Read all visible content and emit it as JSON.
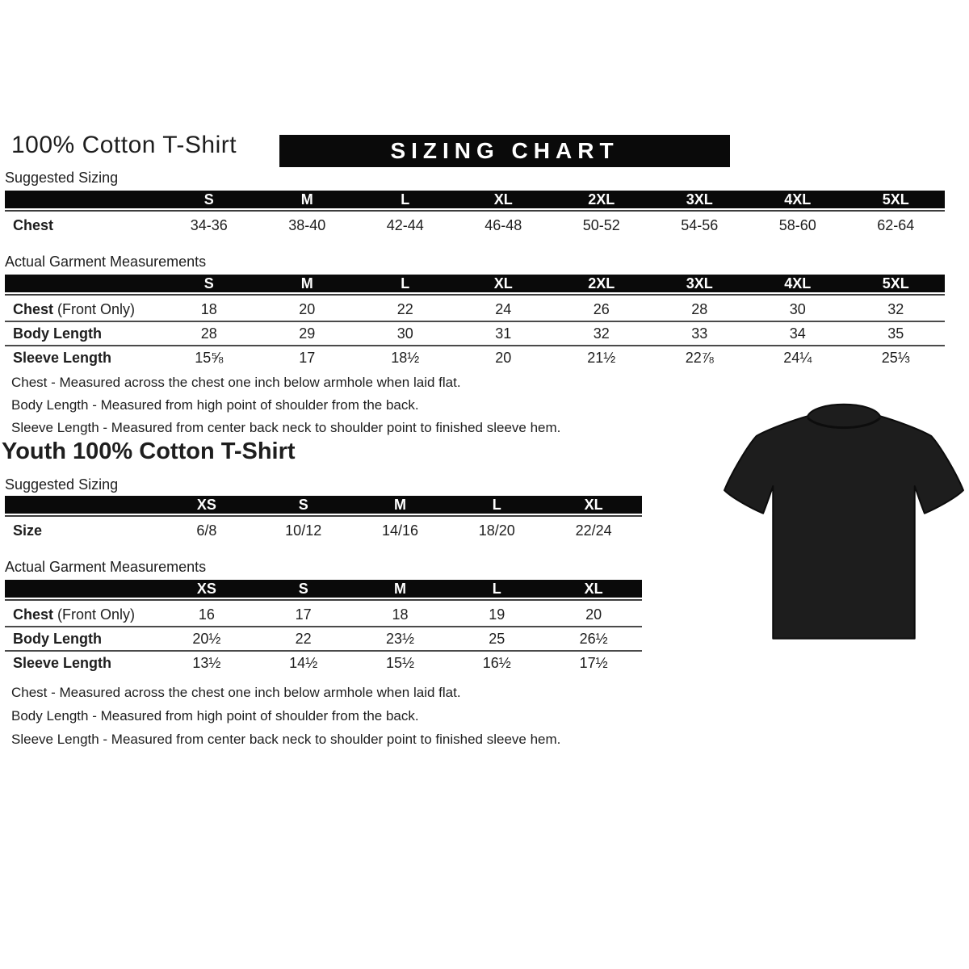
{
  "adult": {
    "heading": "100% Cotton T-Shirt",
    "banner": "SIZING CHART",
    "suggested_label": "Suggested Sizing",
    "suggested_table": {
      "columns": [
        "S",
        "M",
        "L",
        "XL",
        "2XL",
        "3XL",
        "4XL",
        "5XL"
      ],
      "rows": [
        {
          "label": "Chest",
          "suffix": "",
          "values": [
            "34-36",
            "38-40",
            "42-44",
            "46-48",
            "50-52",
            "54-56",
            "58-60",
            "62-64"
          ]
        }
      ]
    },
    "measurements_label": "Actual Garment Measurements",
    "measurements_table": {
      "columns": [
        "S",
        "M",
        "L",
        "XL",
        "2XL",
        "3XL",
        "4XL",
        "5XL"
      ],
      "rows": [
        {
          "label": "Chest",
          "suffix": " (Front Only)",
          "values": [
            "18",
            "20",
            "22",
            "24",
            "26",
            "28",
            "30",
            "32"
          ]
        },
        {
          "label": "Body Length",
          "suffix": "",
          "values": [
            "28",
            "29",
            "30",
            "31",
            "32",
            "33",
            "34",
            "35"
          ]
        },
        {
          "label": "Sleeve Length",
          "suffix": "",
          "values": [
            "15⅝",
            "17",
            "18½",
            "20",
            "21½",
            "22⅞",
            "24¼",
            "25⅓"
          ]
        }
      ]
    },
    "notes": [
      "Chest - Measured across the chest one inch below armhole when laid flat.",
      "Body Length - Measured from high point of shoulder from the back.",
      "Sleeve Length - Measured from center back neck to shoulder point to finished sleeve hem."
    ]
  },
  "youth": {
    "heading": "Youth 100% Cotton T-Shirt",
    "suggested_label": "Suggested Sizing",
    "suggested_table": {
      "columns": [
        "XS",
        "S",
        "M",
        "L",
        "XL"
      ],
      "rows": [
        {
          "label": "Size",
          "suffix": "",
          "values": [
            "6/8",
            "10/12",
            "14/16",
            "18/20",
            "22/24"
          ]
        }
      ]
    },
    "measurements_label": "Actual Garment Measurements",
    "measurements_table": {
      "columns": [
        "XS",
        "S",
        "M",
        "L",
        "XL"
      ],
      "rows": [
        {
          "label": "Chest",
          "suffix": " (Front Only)",
          "values": [
            "16",
            "17",
            "18",
            "19",
            "20"
          ]
        },
        {
          "label": "Body Length",
          "suffix": "",
          "values": [
            "20½",
            "22",
            "23½",
            "25",
            "26½"
          ]
        },
        {
          "label": "Sleeve Length",
          "suffix": "",
          "values": [
            "13½",
            "14½",
            "15½",
            "16½",
            "17½"
          ]
        }
      ]
    },
    "notes": [
      "Chest - Measured across the chest one inch below armhole when laid flat.",
      "Body Length - Measured from high point of shoulder from the back.",
      "Sleeve Length - Measured from center back neck to shoulder point to finished sleeve hem."
    ]
  },
  "tshirt": {
    "name": "black-tshirt",
    "color": "#1d1d1d"
  },
  "colors": {
    "bar_bg": "#0a0a0a",
    "bar_text": "#ffffff",
    "text": "#1e1e1e",
    "rule": "#4a4a4a"
  }
}
